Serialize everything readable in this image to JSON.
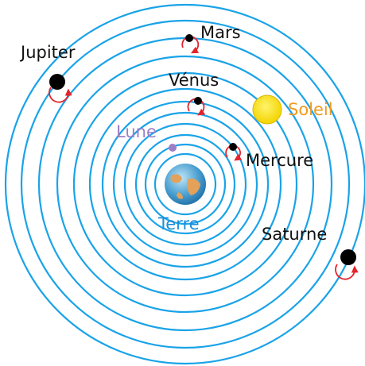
{
  "nodes": [
    {
      "label": "Mars"
    },
    {
      "label": "Jupiter"
    },
    {
      "label": "Vénus"
    },
    {
      "label": "Soleil"
    },
    {
      "label": "Lune"
    },
    {
      "label": "Mercure"
    },
    {
      "label": "Terre"
    },
    {
      "label": "Saturne"
    }
  ]
}
